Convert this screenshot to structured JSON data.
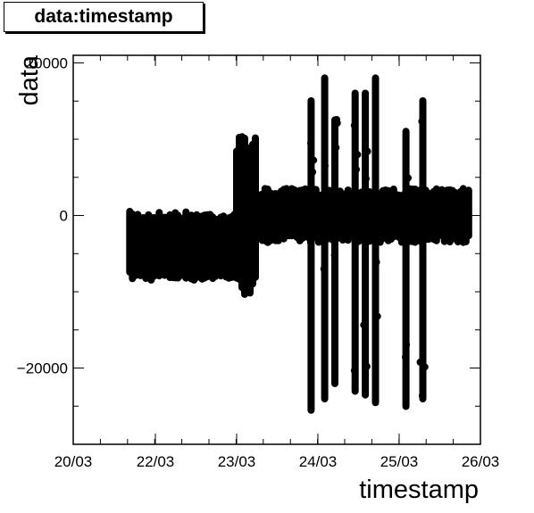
{
  "title": "data:timestamp",
  "chart_data": {
    "type": "scatter",
    "title": "data:timestamp",
    "xlabel": "timestamp",
    "ylabel": "data",
    "x_ticks": [
      "20/03",
      "22/03",
      "23/03",
      "24/03",
      "25/03",
      "26/03"
    ],
    "y_ticks": [
      {
        "value": 20000,
        "label": "20000"
      },
      {
        "value": 0,
        "label": "0"
      },
      {
        "value": -20000,
        "label": "−20000"
      }
    ],
    "ylim": [
      -30000,
      21000
    ],
    "marker_color": "#000000",
    "clusters": [
      {
        "x_start": "21/03 09:00",
        "x_end": "23/03 00:00",
        "y_min": -9000,
        "y_max": 1000
      },
      {
        "x_start": "23/03 00:00",
        "x_end": "23/03 06:00",
        "y_min": -11000,
        "y_max": 11000
      },
      {
        "x_start": "23/03 06:00",
        "x_end": "25/03 21:00",
        "y_min": -4000,
        "y_max": 4000
      }
    ],
    "spikes": [
      {
        "x": "23/03 22:00",
        "y_min": -26000,
        "y_max": 15500
      },
      {
        "x": "24/03 02:00",
        "y_min": -24500,
        "y_max": 18500
      },
      {
        "x": "24/03 05:00",
        "y_min": -22500,
        "y_max": 13000
      },
      {
        "x": "24/03 11:00",
        "y_min": -23500,
        "y_max": 16500
      },
      {
        "x": "24/03 14:00",
        "y_min": -24000,
        "y_max": 16500
      },
      {
        "x": "24/03 17:00",
        "y_min": -25000,
        "y_max": 18500
      },
      {
        "x": "25/03 02:00",
        "y_min": -25500,
        "y_max": 11500
      },
      {
        "x": "25/03 07:00",
        "y_min": -24500,
        "y_max": 15500
      }
    ]
  }
}
